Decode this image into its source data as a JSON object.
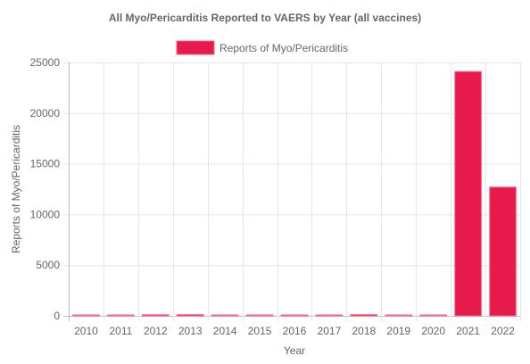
{
  "chart_data": {
    "type": "bar",
    "title": "All Myo/Pericarditis Reported to VAERS by Year (all vaccines)",
    "xlabel": "Year",
    "ylabel": "Reports of Myo/Pericarditis",
    "categories": [
      "2010",
      "2011",
      "2012",
      "2013",
      "2014",
      "2015",
      "2016",
      "2017",
      "2018",
      "2019",
      "2020",
      "2021",
      "2022"
    ],
    "series": [
      {
        "name": "Reports of Myo/Pericarditis",
        "values": [
          60,
          50,
          110,
          120,
          55,
          40,
          60,
          55,
          120,
          70,
          70,
          24100,
          12700
        ]
      }
    ],
    "ylim": [
      0,
      25000
    ],
    "yticks": [
      0,
      5000,
      10000,
      15000,
      20000,
      25000
    ],
    "grid": true,
    "legend_position": "top",
    "colors": {
      "bar_fill": "#e8194b",
      "bar_stroke": "#ff6384",
      "grid": "#e6e6e6",
      "axis": "#bdbdbd",
      "text": "#666666"
    }
  }
}
